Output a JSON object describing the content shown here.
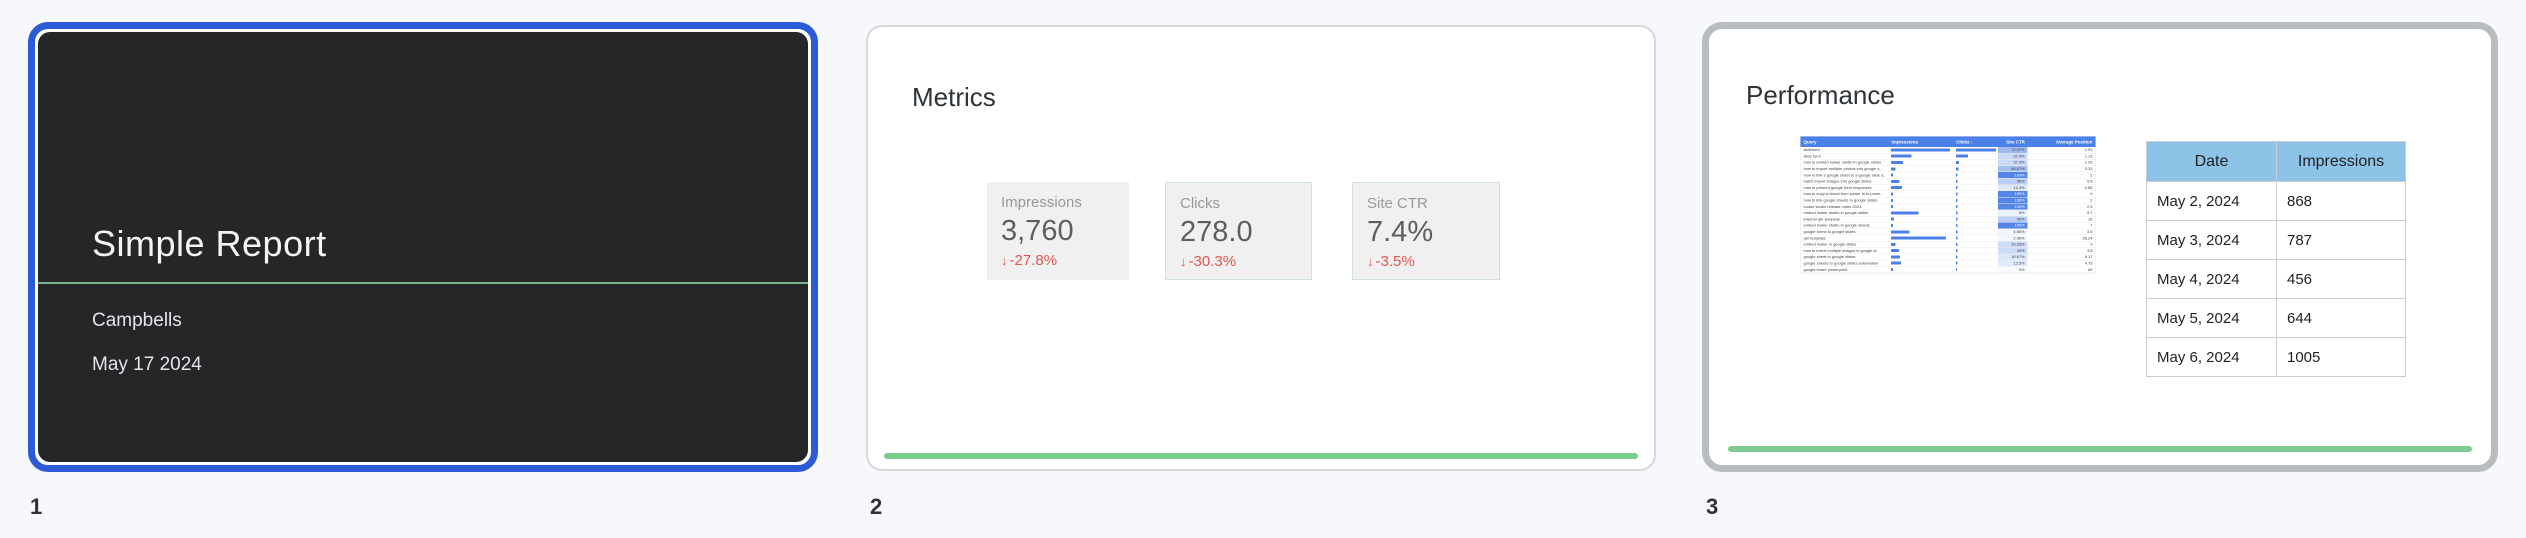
{
  "colors": {
    "page_background": "#f7f8fb",
    "selection_blue": "#2d5bd8",
    "slide1_background": "#242628",
    "accent_green": "#7ccb90",
    "divider_green": "#7cb08d",
    "delta_red": "#e4574c",
    "mini_table_header_blue": "#4b80e8",
    "data_table_header_blue": "#8cc3e6"
  },
  "slides": [
    {
      "number": "1",
      "state": "selected",
      "title": "Simple Report",
      "subtitle": "Campbells",
      "date": "May 17 2024"
    },
    {
      "number": "2",
      "heading": "Metrics",
      "scorecards": [
        {
          "label": "Impressions",
          "value": "3,760",
          "arrow": "↓",
          "delta": "-27.8%"
        },
        {
          "label": "Clicks",
          "value": "278.0",
          "arrow": "↓",
          "delta": "-30.3%"
        },
        {
          "label": "Site CTR",
          "value": "7.4%",
          "arrow": "↓",
          "delta": "-3.5%"
        }
      ]
    },
    {
      "number": "3",
      "heading": "Performance",
      "queries_table": {
        "headers": [
          "Query",
          "Impressions",
          "Clicks ↓",
          "Site CTR",
          "Average Position"
        ],
        "rows": [
          {
            "q": "slideform",
            "imp": 1.0,
            "clk": 1.0,
            "ctr": "72.97%",
            "heat": 0.55,
            "pos": "1.03"
          },
          {
            "q": "slide form",
            "imp": 0.34,
            "clk": 0.3,
            "ctr": "37.5%",
            "heat": 0.3,
            "pos": "1.13"
          },
          {
            "q": "how to embed looker studio in google slides",
            "imp": 0.2,
            "clk": 0.08,
            "ctr": "37.5%",
            "heat": 0.3,
            "pos": "1.25"
          },
          {
            "q": "how to import multiple photos into google s..",
            "imp": 0.07,
            "clk": 0.06,
            "ctr": "66.67%",
            "heat": 0.5,
            "pos": "3.33"
          },
          {
            "q": "how to link a google sheet to a google slide d..",
            "imp": 0.03,
            "clk": 0.04,
            "ctr": "100%",
            "heat": 0.95,
            "pos": "2"
          },
          {
            "q": "batch import images into google slides",
            "imp": 0.14,
            "clk": 0.04,
            "ctr": "50%",
            "heat": 0.38,
            "pos": "5.6"
          },
          {
            "q": "how to present google form responses",
            "imp": 0.18,
            "clk": 0.04,
            "ctr": "13.3%",
            "heat": 0.18,
            "pos": "6.88"
          },
          {
            "q": "how to copy a visual from power bi to powe..",
            "imp": 0.03,
            "clk": 0.04,
            "ctr": "100%",
            "heat": 0.95,
            "pos": "9"
          },
          {
            "q": "how to link google sheets to google slides",
            "imp": 0.03,
            "clk": 0.04,
            "ctr": "100%",
            "heat": 0.95,
            "pos": "2"
          },
          {
            "q": "looker studio release notes 2024",
            "imp": 0.03,
            "clk": 0.04,
            "ctr": "100%",
            "heat": 0.95,
            "pos": "2.5"
          },
          {
            "q": "embed looker studio in google slides",
            "imp": 0.46,
            "clk": 0.04,
            "ctr": "5%",
            "heat": 0.1,
            "pos": "9.7"
          },
          {
            "q": "internal qbr template",
            "imp": 0.05,
            "clk": 0.04,
            "ctr": "50%",
            "heat": 0.38,
            "pos": "16"
          },
          {
            "q": "embed looker studio in google sheets",
            "imp": 0.03,
            "clk": 0.04,
            "ctr": "100%",
            "heat": 0.95,
            "pos": "7"
          },
          {
            "q": "google forms to google slides",
            "imp": 0.31,
            "clk": 0.04,
            "ctr": "4.55%",
            "heat": 0.08,
            "pos": "3.5"
          },
          {
            "q": "qbr template",
            "imp": 0.93,
            "clk": 0.04,
            "ctr": "2.46%",
            "heat": 0.06,
            "pos": "26.24"
          },
          {
            "q": "embed looker in google slides",
            "imp": 0.07,
            "clk": 0.04,
            "ctr": "33.33%",
            "heat": 0.28,
            "pos": "3"
          },
          {
            "q": "how to insert multiple images in google sl..",
            "imp": 0.13,
            "clk": 0.04,
            "ctr": "33%",
            "heat": 0.28,
            "pos": "3.8"
          },
          {
            "q": "google sheet to google slides",
            "imp": 0.15,
            "clk": 0.04,
            "ctr": "16.67%",
            "heat": 0.2,
            "pos": "6.17"
          },
          {
            "q": "google sheets to google slides automation",
            "imp": 0.17,
            "clk": 0.04,
            "ctr": "12.5%",
            "heat": 0.17,
            "pos": "4.75"
          },
          {
            "q": "google share powerpoint",
            "imp": 0.03,
            "clk": 0.02,
            "ctr": "0%",
            "heat": 0.04,
            "pos": "65"
          }
        ]
      },
      "data_table": {
        "headers": [
          "Date",
          "Impressions"
        ],
        "rows": [
          [
            "May 2, 2024",
            "868"
          ],
          [
            "May 3, 2024",
            "787"
          ],
          [
            "May 4, 2024",
            "456"
          ],
          [
            "May 5, 2024",
            "644"
          ],
          [
            "May 6, 2024",
            "1005"
          ]
        ]
      }
    }
  ]
}
